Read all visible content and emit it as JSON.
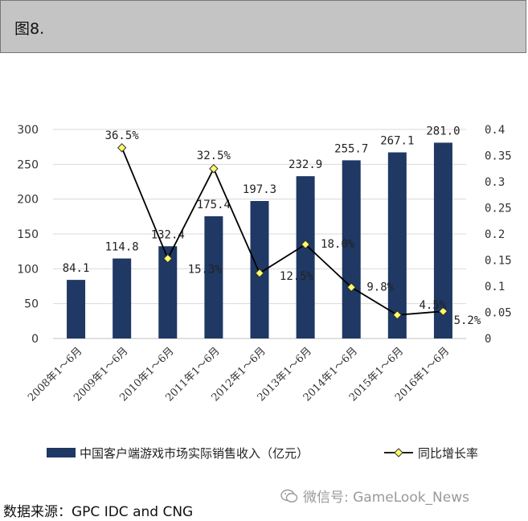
{
  "header": {
    "title": "图8."
  },
  "source": "数据来源：GPC IDC and CNG",
  "watermark": {
    "text": "微信号: GameLook_News",
    "icon": "wechat-icon"
  },
  "colors": {
    "bar": "#1f3864",
    "line": "#000000",
    "marker": "#ffff66",
    "grid": "#d9d9d9"
  },
  "chart_data": {
    "type": "bar",
    "categories": [
      "2008年1～6月",
      "2009年1～6月",
      "2010年1～6月",
      "2011年1～6月",
      "2012年1～6月",
      "2013年1～6月",
      "2014年1～6月",
      "2015年1～6月",
      "2016年1～6月"
    ],
    "series": [
      {
        "name": "中国客户端游戏市场实际销售收入（亿元）",
        "type": "bar",
        "axis": "left",
        "values": [
          84.1,
          114.8,
          132.4,
          175.4,
          197.3,
          232.9,
          255.7,
          267.1,
          281.0
        ],
        "labels": [
          "84.1",
          "114.8",
          "132.4",
          "175.4",
          "197.3",
          "232.9",
          "255.7",
          "267.1",
          "281.0"
        ]
      },
      {
        "name": "同比增长率",
        "type": "line",
        "axis": "right",
        "values": [
          null,
          0.365,
          0.153,
          0.325,
          0.125,
          0.18,
          0.098,
          0.045,
          0.052
        ],
        "labels": [
          "",
          "36.5%",
          "15.3%",
          "32.5%",
          "12.5%",
          "18.0%",
          "9.8%",
          "4.5%",
          "5.2%"
        ]
      }
    ],
    "y_left": {
      "min": 0,
      "max": 300,
      "ticks": [
        "0",
        "50",
        "100",
        "150",
        "200",
        "250",
        "300"
      ]
    },
    "y_right": {
      "min": 0,
      "max": 0.4,
      "ticks": [
        "0",
        "0.05",
        "0.1",
        "0.15",
        "0.2",
        "0.25",
        "0.3",
        "0.35",
        "0.4"
      ]
    },
    "grid": true,
    "legend_position": "bottom"
  }
}
